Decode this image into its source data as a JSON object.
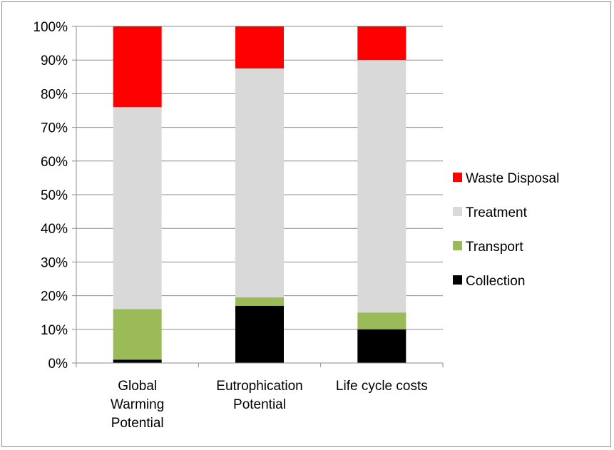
{
  "chart_data": {
    "type": "bar",
    "stacked": true,
    "title": "",
    "xlabel": "",
    "ylabel": "",
    "ylim": [
      0,
      100
    ],
    "y_ticks": [
      "0%",
      "10%",
      "20%",
      "30%",
      "40%",
      "50%",
      "60%",
      "70%",
      "80%",
      "90%",
      "100%"
    ],
    "categories": [
      [
        "Global",
        "Warming",
        "Potential"
      ],
      [
        "Eutrophication",
        "Potential"
      ],
      [
        "Life cycle costs"
      ]
    ],
    "series": [
      {
        "name": "Collection",
        "color": "#000000",
        "values": [
          1,
          17,
          10
        ]
      },
      {
        "name": "Transport",
        "color": "#9bbb59",
        "values": [
          15,
          2.5,
          5
        ]
      },
      {
        "name": "Treatment",
        "color": "#d9d9d9",
        "values": [
          60,
          68,
          75
        ]
      },
      {
        "name": "Waste Disposal",
        "color": "#ff0000",
        "values": [
          24,
          12.5,
          10
        ]
      }
    ],
    "legend": {
      "placement": "right",
      "order": [
        "Waste Disposal",
        "Treatment",
        "Transport",
        "Collection"
      ]
    },
    "grid": true
  }
}
